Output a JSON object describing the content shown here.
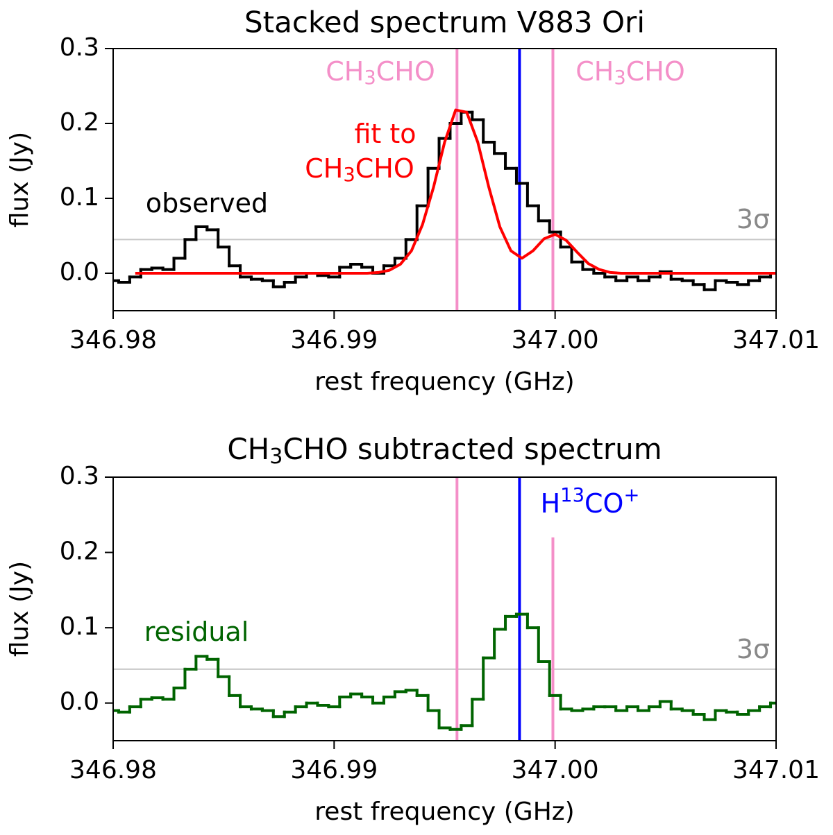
{
  "chart_data": [
    {
      "type": "step",
      "title": "Stacked spectrum V883 Ori",
      "xlabel": "rest frequency (GHz)",
      "ylabel": "flux (Jy)",
      "xlim": [
        346.98,
        347.01
      ],
      "ylim": [
        -0.05,
        0.3
      ],
      "xticks": [
        346.98,
        346.99,
        {
          "value": 347,
          "label": "347.00"
        },
        347.01
      ],
      "yticks": [
        {
          "value": 0,
          "label": "0.0"
        },
        0.1,
        0.2,
        0.3
      ],
      "hline": {
        "value": 0.045,
        "color": "#c8c8c8"
      },
      "vlines": [
        {
          "x": 346.99556,
          "color": "#f48fc8"
        },
        {
          "x": 346.99839,
          "color": "#0000ff"
        },
        {
          "x": 346.9999,
          "color": "#f48fc8"
        }
      ],
      "series": [
        {
          "name": "observed",
          "style": "steps",
          "color": "#000000",
          "x": [
            346.98,
            346.9805,
            346.981,
            346.9815,
            346.982,
            346.9825,
            346.983,
            346.9835,
            346.984,
            346.9845,
            346.985,
            346.9855,
            346.986,
            346.9865,
            346.987,
            346.9875,
            346.988,
            346.9885,
            346.989,
            346.9895,
            346.99,
            346.9905,
            346.991,
            346.9915,
            346.992,
            346.9925,
            346.993,
            346.9935,
            346.994,
            346.9945,
            346.995,
            346.9955,
            346.996,
            346.9965,
            346.997,
            346.9975,
            346.998,
            346.9985,
            346.999,
            346.9995,
            347,
            347.0005,
            347.001,
            347.0015,
            347.002,
            347.0025,
            347.003,
            347.0035,
            347.004,
            347.0045,
            347.005,
            347.0055,
            347.006,
            347.0065,
            347.007,
            347.0075,
            347.008,
            347.0085,
            347.009,
            347.0095,
            347.01
          ],
          "values": [
            -0.01,
            -0.012,
            -0.005,
            0.005,
            0.007,
            0.005,
            0.02,
            0.045,
            0.062,
            0.058,
            0.035,
            0.01,
            -0.005,
            -0.008,
            -0.01,
            -0.018,
            -0.012,
            -0.005,
            0,
            -0.003,
            -0.005,
            0.008,
            0.012,
            0.008,
            0,
            0.01,
            0.02,
            0.045,
            0.09,
            0.14,
            0.18,
            0.2,
            0.215,
            0.205,
            0.175,
            0.16,
            0.14,
            0.12,
            0.09,
            0.07,
            0.055,
            0.035,
            0.015,
            0.005,
            0,
            -0.005,
            -0.01,
            -0.005,
            -0.01,
            -0.005,
            0.002,
            -0.008,
            -0.01,
            -0.015,
            -0.022,
            -0.01,
            -0.012,
            -0.015,
            -0.01,
            -0.005,
            0
          ]
        },
        {
          "name": "fit to CH3CHO",
          "style": "line",
          "color": "#ff0000",
          "x": [
            346.981,
            346.9815,
            346.982,
            346.9825,
            346.983,
            346.9835,
            346.984,
            346.9845,
            346.985,
            346.9855,
            346.986,
            346.9865,
            346.987,
            346.9875,
            346.988,
            346.9885,
            346.989,
            346.9895,
            346.99,
            346.9905,
            346.991,
            346.9915,
            346.992,
            346.9925,
            346.993,
            346.9935,
            346.994,
            346.9945,
            346.995,
            346.9955,
            346.996,
            346.9965,
            346.997,
            346.9975,
            346.998,
            346.9985,
            346.999,
            346.9995,
            347,
            347.0005,
            347.001,
            347.0015,
            347.002,
            347.0025,
            347.003,
            347.0035,
            347.004,
            347.0045,
            347.005,
            347.0055,
            347.006,
            347.0065,
            347.007,
            347.0075,
            347.008,
            347.0085,
            347.009,
            347.0095,
            347.01
          ],
          "values": [
            0,
            0,
            0,
            0,
            0,
            0,
            0,
            0,
            0,
            0,
            0,
            0,
            0,
            0,
            0,
            0,
            0,
            0,
            0,
            0,
            0,
            0,
            0.001,
            0.004,
            0.012,
            0.03,
            0.065,
            0.115,
            0.175,
            0.218,
            0.215,
            0.175,
            0.115,
            0.062,
            0.03,
            0.02,
            0.03,
            0.046,
            0.052,
            0.044,
            0.028,
            0.013,
            0.005,
            0.001,
            0,
            0,
            0,
            0,
            0,
            0,
            0,
            0,
            0,
            0,
            0,
            0,
            0,
            0,
            0
          ]
        }
      ],
      "annotations": [
        {
          "text": [
            "CH",
            "3",
            "CHO"
          ],
          "color": "#f48fc8"
        },
        {
          "text": [
            "CH",
            "3",
            "CHO"
          ],
          "color": "#f48fc8"
        },
        {
          "text": [
            "fit to"
          ],
          "color": "#ff0000"
        },
        {
          "text": [
            "CH",
            "3",
            "CHO"
          ],
          "color": "#ff0000"
        },
        {
          "text": [
            "observed"
          ],
          "color": "#000000"
        },
        {
          "text": [
            "3σ"
          ],
          "color": "#888888"
        }
      ]
    },
    {
      "type": "step",
      "title": [
        "CH",
        "3",
        "CHO subtracted spectrum"
      ],
      "xlabel": "rest frequency (GHz)",
      "ylabel": "flux (Jy)",
      "xlim": [
        346.98,
        347.01
      ],
      "ylim": [
        -0.05,
        0.3
      ],
      "xticks": [
        346.98,
        346.99,
        {
          "value": 347,
          "label": "347.00"
        },
        347.01
      ],
      "yticks": [
        {
          "value": 0,
          "label": "0.0"
        },
        0.1,
        0.2,
        0.3
      ],
      "hline": {
        "value": 0.045,
        "color": "#c8c8c8"
      },
      "vlines": [
        {
          "x": 346.99556,
          "color": "#f48fc8"
        },
        {
          "x": 346.99839,
          "color": "#0000ff"
        },
        {
          "x": 346.9999,
          "color": "#f48fc8",
          "ymax": 0.22
        }
      ],
      "series": [
        {
          "name": "residual",
          "style": "steps",
          "color": "#006400",
          "x": [
            346.98,
            346.9805,
            346.981,
            346.9815,
            346.982,
            346.9825,
            346.983,
            346.9835,
            346.984,
            346.9845,
            346.985,
            346.9855,
            346.986,
            346.9865,
            346.987,
            346.9875,
            346.988,
            346.9885,
            346.989,
            346.9895,
            346.99,
            346.9905,
            346.991,
            346.9915,
            346.992,
            346.9925,
            346.993,
            346.9935,
            346.994,
            346.9945,
            346.995,
            346.9955,
            346.996,
            346.9965,
            346.997,
            346.9975,
            346.998,
            346.9985,
            346.999,
            346.9995,
            347,
            347.0005,
            347.001,
            347.0015,
            347.002,
            347.0025,
            347.003,
            347.0035,
            347.004,
            347.0045,
            347.005,
            347.0055,
            347.006,
            347.0065,
            347.007,
            347.0075,
            347.008,
            347.0085,
            347.009,
            347.0095,
            347.01
          ],
          "values": [
            -0.01,
            -0.012,
            -0.005,
            0.005,
            0.007,
            0.005,
            0.02,
            0.045,
            0.062,
            0.058,
            0.035,
            0.01,
            -0.005,
            -0.008,
            -0.01,
            -0.018,
            -0.012,
            -0.005,
            0,
            -0.003,
            -0.005,
            0.008,
            0.012,
            0.008,
            0,
            0.008,
            0.015,
            0.017,
            0.01,
            -0.01,
            -0.033,
            -0.035,
            -0.03,
            0.005,
            0.06,
            0.098,
            0.115,
            0.118,
            0.1,
            0.055,
            0.01,
            -0.008,
            -0.01,
            -0.008,
            -0.005,
            -0.005,
            -0.01,
            -0.005,
            -0.01,
            -0.005,
            0.002,
            -0.008,
            -0.01,
            -0.015,
            -0.022,
            -0.01,
            -0.012,
            -0.015,
            -0.01,
            -0.005,
            0
          ]
        }
      ],
      "annotations": [
        {
          "text": [
            "H",
            "13",
            "CO",
            "+"
          ],
          "color": "#0000ff"
        },
        {
          "text": [
            "residual"
          ],
          "color": "#006400"
        },
        {
          "text": [
            "3σ"
          ],
          "color": "#888888"
        }
      ]
    }
  ]
}
